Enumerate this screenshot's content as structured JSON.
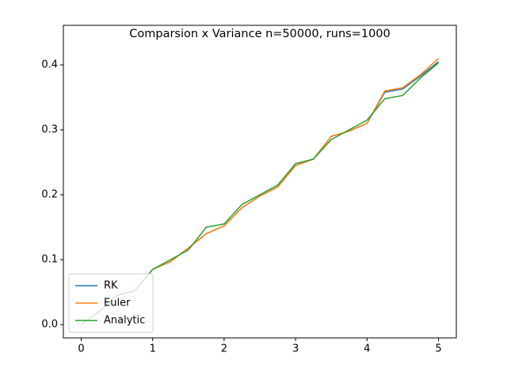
{
  "chart_data": {
    "type": "line",
    "title": "Comparsion x Variance n=50000, runs=1000",
    "x": [
      0,
      0.25,
      0.5,
      0.75,
      1,
      1.25,
      1.5,
      1.75,
      2,
      2.25,
      2.5,
      2.75,
      3,
      3.25,
      3.5,
      3.75,
      4,
      4.25,
      4.5,
      4.75,
      5
    ],
    "series": [
      {
        "name": "RK",
        "color": "#1f77b4",
        "values": [
          0,
          0.02,
          0.045,
          0.052,
          0.085,
          0.097,
          0.118,
          0.14,
          0.152,
          0.18,
          0.198,
          0.212,
          0.245,
          0.255,
          0.29,
          0.298,
          0.31,
          0.358,
          0.363,
          0.383,
          0.405
        ]
      },
      {
        "name": "Euler",
        "color": "#ff7f0e",
        "values": [
          0,
          0.02,
          0.045,
          0.052,
          0.085,
          0.097,
          0.118,
          0.14,
          0.152,
          0.18,
          0.198,
          0.212,
          0.245,
          0.255,
          0.29,
          0.298,
          0.31,
          0.36,
          0.365,
          0.385,
          0.41
        ]
      },
      {
        "name": "Analytic",
        "color": "#2ca02c",
        "values": [
          0,
          0.02,
          0.045,
          0.052,
          0.085,
          0.1,
          0.115,
          0.15,
          0.155,
          0.185,
          0.2,
          0.215,
          0.248,
          0.255,
          0.285,
          0.3,
          0.315,
          0.348,
          0.353,
          0.38,
          0.403
        ]
      }
    ],
    "xlim": [
      -0.25,
      5.25
    ],
    "xticks": [
      0,
      1,
      2,
      3,
      4,
      5
    ],
    "ylim": [
      -0.0205,
      0.461
    ],
    "yticks": [
      {
        "value": 0,
        "label": "0.0"
      },
      0.1,
      0.2,
      0.3,
      0.4
    ],
    "legend": "lower left",
    "grid": false
  }
}
